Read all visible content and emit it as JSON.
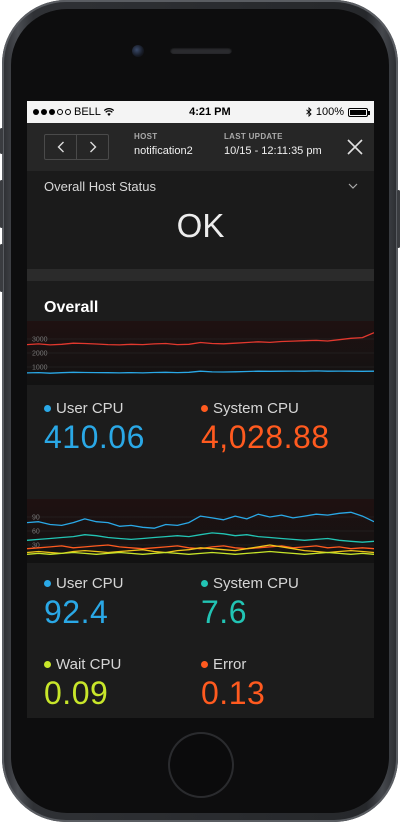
{
  "status_bar": {
    "carrier": "BELL",
    "time": "4:21 PM",
    "battery": "100%"
  },
  "header": {
    "host_label": "HOST",
    "host_value": "notification2",
    "update_label": "LAST UPDATE",
    "update_value": "10/15 - 12:11:35 pm"
  },
  "host_status": {
    "title": "Overall Host Status",
    "value": "OK"
  },
  "section": {
    "title": "Overall"
  },
  "colors": {
    "blue": "#2aa8e6",
    "orange": "#ff5a1f",
    "red": "#e2382e",
    "teal": "#22c4b4",
    "lime": "#c8e62a",
    "yellow": "#f0c419"
  },
  "chart1": {
    "type": "line",
    "y_ticks": [
      "3000",
      "2000",
      "1000"
    ],
    "ylim": [
      0,
      4000
    ],
    "series": [
      {
        "color": "#e2382e",
        "values": [
          2600,
          2650,
          2580,
          2620,
          2700,
          2680,
          2640,
          2600,
          2580,
          2620,
          2600,
          2650,
          2680,
          2600,
          2620,
          2750,
          2680,
          2660,
          2700,
          2750,
          2800,
          2760,
          2820,
          2850,
          2880,
          2900,
          2860,
          2950,
          3050,
          3100,
          3450
        ]
      },
      {
        "color": "#2aa8e6",
        "values": [
          580,
          600,
          560,
          590,
          620,
          610,
          600,
          590,
          580,
          600,
          580,
          610,
          620,
          600,
          620,
          700,
          650,
          640,
          660,
          680,
          700,
          690,
          700,
          710,
          700,
          720,
          700,
          710,
          700,
          690,
          700
        ]
      }
    ]
  },
  "chart1_metrics": [
    {
      "label": "User CPU",
      "value": "410.06",
      "color": "#2aa8e6"
    },
    {
      "label": "System CPU",
      "value": "4,028.88",
      "color": "#ff5a1f"
    }
  ],
  "chart2": {
    "type": "line",
    "y_ticks": [
      "90",
      "60",
      "30"
    ],
    "ylim": [
      0,
      120
    ],
    "series": [
      {
        "color": "#2aa8e6",
        "values": [
          78,
          80,
          74,
          72,
          78,
          86,
          80,
          78,
          70,
          72,
          68,
          66,
          74,
          72,
          78,
          92,
          88,
          84,
          92,
          86,
          96,
          90,
          94,
          88,
          92,
          96,
          94,
          98,
          100,
          92,
          80
        ]
      },
      {
        "color": "#22c4b4",
        "values": [
          40,
          42,
          44,
          46,
          48,
          52,
          50,
          46,
          44,
          42,
          44,
          46,
          48,
          50,
          48,
          52,
          56,
          54,
          50,
          52,
          48,
          46,
          44,
          42,
          40,
          42,
          44,
          40,
          38,
          36,
          38
        ]
      },
      {
        "color": "#ff5a1f",
        "values": [
          22,
          24,
          26,
          28,
          24,
          26,
          28,
          30,
          26,
          24,
          22,
          24,
          26,
          28,
          24,
          22,
          26,
          28,
          24,
          22,
          24,
          26,
          28,
          24,
          26,
          28,
          24,
          26,
          22,
          24,
          22
        ]
      },
      {
        "color": "#f0c419",
        "values": [
          14,
          16,
          14,
          12,
          16,
          18,
          16,
          14,
          16,
          18,
          20,
          16,
          14,
          18,
          20,
          24,
          22,
          20,
          18,
          22,
          26,
          30,
          26,
          22,
          18,
          16,
          14,
          16,
          18,
          16,
          14
        ]
      },
      {
        "color": "#c8e62a",
        "values": [
          10,
          12,
          10,
          12,
          14,
          12,
          10,
          12,
          14,
          12,
          10,
          12,
          14,
          12,
          10,
          12,
          14,
          12,
          10,
          12,
          14,
          16,
          14,
          12,
          10,
          12,
          14,
          12,
          10,
          12,
          10
        ]
      }
    ]
  },
  "chart2_metrics": [
    {
      "label": "User CPU",
      "value": "92.4",
      "color": "#2aa8e6"
    },
    {
      "label": "System CPU",
      "value": "7.6",
      "color": "#22c4b4"
    },
    {
      "label": "Wait CPU",
      "value": "0.09",
      "color": "#c8e62a"
    },
    {
      "label": "Error",
      "value": "0.13",
      "color": "#ff5a1f"
    }
  ]
}
